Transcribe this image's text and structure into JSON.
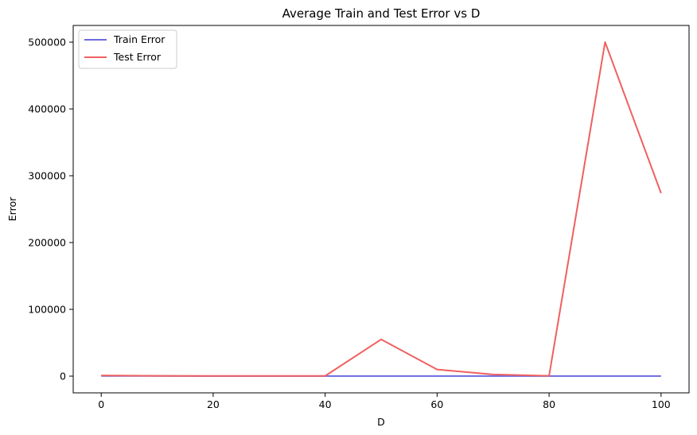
{
  "chart_data": {
    "type": "line",
    "title": "Average Train and Test Error vs D",
    "xlabel": "D",
    "ylabel": "Error",
    "xlim": [
      -5,
      105
    ],
    "ylim": [
      -25000,
      525000
    ],
    "xticks": [
      0,
      20,
      40,
      60,
      80,
      100
    ],
    "yticks": [
      0,
      100000,
      200000,
      300000,
      400000,
      500000
    ],
    "grid": false,
    "legend_position": "upper-left",
    "x": [
      0,
      10,
      20,
      30,
      40,
      50,
      60,
      70,
      80,
      90,
      100
    ],
    "series": [
      {
        "name": "Train Error",
        "color": "#6b6be0",
        "values": [
          300,
          250,
          200,
          200,
          200,
          200,
          200,
          200,
          200,
          200,
          200
        ]
      },
      {
        "name": "Test Error",
        "color": "#f06060",
        "values": [
          1000,
          500,
          300,
          300,
          300,
          55000,
          10000,
          2500,
          500,
          500000,
          274000
        ]
      }
    ]
  }
}
